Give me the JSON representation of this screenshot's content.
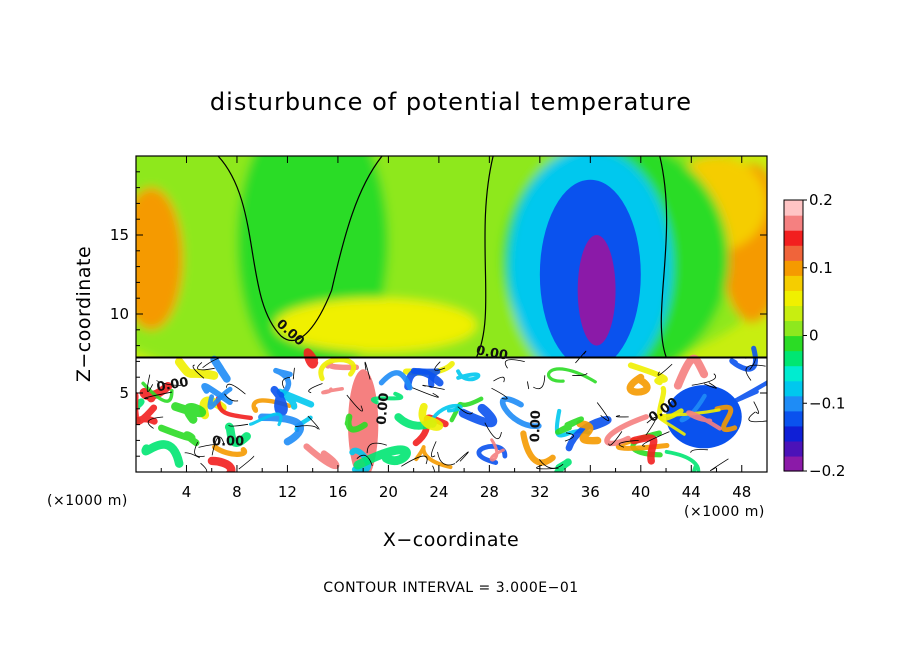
{
  "chart_data": {
    "type": "heatmap",
    "title": "disturbunce of potential temperature",
    "xlabel": "X−coordinate",
    "ylabel": "Z−coordinate",
    "x_unit_left": "(×1000 m)",
    "x_unit_right": "(×1000 m)",
    "xlim": [
      0,
      50
    ],
    "ylim": [
      0,
      20
    ],
    "x_ticks": [
      4,
      8,
      12,
      16,
      20,
      24,
      28,
      32,
      36,
      40,
      44,
      48
    ],
    "y_ticks": [
      5,
      10,
      15
    ],
    "colorbar": {
      "min": -0.2,
      "max": 0.2,
      "tick_values": [
        0.2,
        0.1,
        0,
        -0.1,
        -0.2
      ],
      "tick_labels": [
        "0.2",
        "0.1",
        "0",
        "−0.1",
        "−0.2"
      ],
      "colors": [
        "#8b1aa8",
        "#4b12b8",
        "#0f1fd6",
        "#0a52ee",
        "#1e8cf6",
        "#00c8ee",
        "#00ecd0",
        "#00e672",
        "#2bdc25",
        "#8ee81e",
        "#c8ee10",
        "#f0f000",
        "#f5cd00",
        "#f59a00",
        "#f0643a",
        "#f21f1f",
        "#f58080",
        "#ffc4c4"
      ]
    },
    "contour_labels": [
      {
        "text": "0.00",
        "x": 12.2,
        "z": 8.8,
        "rot": 42
      },
      {
        "text": "0.00",
        "x": 2.9,
        "z": 5.5,
        "rot": -10
      },
      {
        "text": "0.00",
        "x": 7.3,
        "z": 1.9,
        "rot": 0
      },
      {
        "text": "0.00",
        "x": 19.6,
        "z": 4.0,
        "rot": -85
      },
      {
        "text": "0.00",
        "x": 28.2,
        "z": 7.5,
        "rot": 10
      },
      {
        "text": "0.00",
        "x": 31.7,
        "z": 2.9,
        "rot": -88
      },
      {
        "text": "0.00",
        "x": 41.8,
        "z": 3.9,
        "rot": -35
      }
    ],
    "field_regions": [
      {
        "shape": "ellipse",
        "x": 22,
        "z": 14.5,
        "rx": 30,
        "rz": 10,
        "value": 0.02
      },
      {
        "shape": "ellipse",
        "x": 14,
        "z": 14.5,
        "rx": 6,
        "rz": 9,
        "value": -0.005
      },
      {
        "shape": "ellipse",
        "x": 1.2,
        "z": 13.5,
        "rx": 2.5,
        "rz": 4.5,
        "value": 0.1
      },
      {
        "shape": "ellipse",
        "x": 48.8,
        "z": 14.5,
        "rx": 2.5,
        "rz": 5,
        "value": 0.1
      },
      {
        "shape": "ellipse",
        "x": 46,
        "z": 17,
        "rx": 4,
        "rz": 3,
        "value": 0.07
      },
      {
        "shape": "ellipse",
        "x": 19,
        "z": 9.3,
        "rx": 8,
        "rz": 1.7,
        "value": 0.06
      },
      {
        "shape": "ellipse",
        "x": 38,
        "z": 13.5,
        "rx": 9,
        "rz": 7.5,
        "value": -0.02
      },
      {
        "shape": "ellipse",
        "x": 36,
        "z": 13,
        "rx": 6.5,
        "rz": 7.5,
        "value": -0.07
      },
      {
        "shape": "ellipse",
        "x": 36,
        "z": 12.5,
        "rx": 4,
        "rz": 6,
        "value": -0.13
      },
      {
        "shape": "ellipse",
        "x": 36.5,
        "z": 11.5,
        "rx": 1.5,
        "rz": 3.5,
        "value": -0.19
      },
      {
        "shape": "band",
        "x": [
          0,
          50
        ],
        "z": [
          0,
          7.3
        ],
        "value": 0.0
      },
      {
        "shape": "ellipse",
        "x": 6,
        "z": 3.5,
        "rx": 5,
        "rz": 1.8,
        "value": 0.03
      },
      {
        "shape": "ellipse",
        "x": 13,
        "z": 4.5,
        "rx": 3,
        "rz": 1.4,
        "value": 0.1
      },
      {
        "shape": "ellipse",
        "x": 18,
        "z": 3.0,
        "rx": 1.2,
        "rz": 3.5,
        "value": 0.17
      },
      {
        "shape": "ellipse",
        "x": 31,
        "z": 4.2,
        "rx": 2.5,
        "rz": 2,
        "value": 0.1
      },
      {
        "shape": "ellipse",
        "x": 31.5,
        "z": 3.2,
        "rx": 1.3,
        "rz": 1.2,
        "value": -0.05
      },
      {
        "shape": "ellipse",
        "x": 45,
        "z": 3.5,
        "rx": 3,
        "rz": 2,
        "value": -0.12
      },
      {
        "shape": "ellipse",
        "x": 47,
        "z": 2.2,
        "rx": 2.4,
        "rz": 1.4,
        "value": 0.05
      },
      {
        "shape": "ellipse",
        "x": 42.5,
        "z": 1.6,
        "rx": 2.5,
        "rz": 1.2,
        "value": 0.08
      }
    ]
  },
  "footer": {
    "contour_interval": "CONTOUR INTERVAL = 3.000E−01"
  }
}
